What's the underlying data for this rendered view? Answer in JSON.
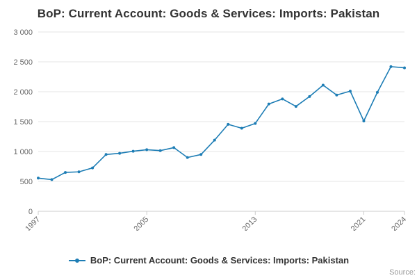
{
  "chart_data": {
    "type": "line",
    "title": "BoP: Current Account: Goods & Services: Imports: Pakistan",
    "legend": "BoP: Current Account: Goods & Services: Imports: Pakistan",
    "categories": [
      "1997",
      "1998",
      "1999",
      "2000",
      "2001",
      "2002",
      "2003",
      "2004",
      "2005",
      "2006",
      "2007",
      "2008",
      "2009",
      "2010",
      "2011",
      "2012",
      "2013",
      "2014",
      "2015",
      "2016",
      "2017",
      "2018",
      "2019",
      "2020",
      "2021",
      "2022",
      "2023",
      "2024"
    ],
    "values": [
      555,
      530,
      650,
      660,
      725,
      950,
      970,
      1005,
      1030,
      1015,
      1065,
      900,
      950,
      1190,
      1455,
      1390,
      1470,
      1795,
      1880,
      1755,
      1920,
      2110,
      1945,
      2010,
      1510,
      1990,
      2420,
      2400
    ],
    "xlabel": "",
    "ylabel": "",
    "ylim": [
      0,
      3000
    ],
    "yticks": [
      0,
      500,
      1000,
      1500,
      2000,
      2500,
      3000
    ],
    "ytick_labels": [
      "0",
      "500",
      "1 000",
      "1 500",
      "2 000",
      "2 500",
      "3 000"
    ],
    "xticks": [
      "1997",
      "2005",
      "2013",
      "2021",
      "2024"
    ],
    "grid": true,
    "legend_position": "bottom",
    "series_color": "#1d7db5"
  },
  "footer": {
    "source": "Source:"
  },
  "colors": {
    "accent": "#1d7db5",
    "gridline": "#e6e6e6",
    "axis_line": "#cccccc",
    "tick_text": "#666666",
    "title_text": "#333333",
    "source_text": "#999999"
  }
}
